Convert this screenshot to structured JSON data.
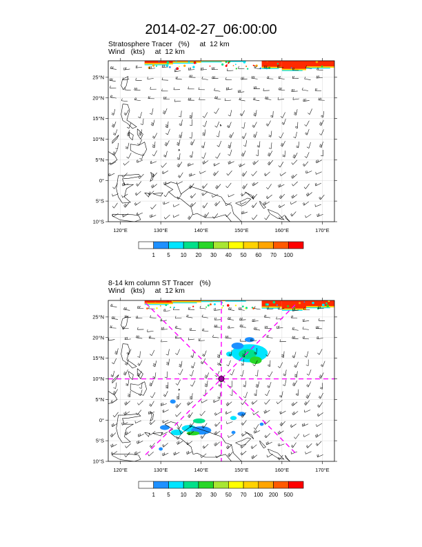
{
  "title": "2014-02-27_06:00:00",
  "panels": [
    {
      "id": "top",
      "label_line1": "Stratosphere Tracer   (%)     at  12 km",
      "label_line2": "Wind   (kts)     at  12 km",
      "colorbar": {
        "labels": [
          "1",
          "5",
          "10",
          "20",
          "30",
          "40",
          "50",
          "60",
          "70",
          "100"
        ],
        "colors": [
          "#ffffff",
          "#1e90ff",
          "#00e5ff",
          "#00e08a",
          "#28d628",
          "#a8e632",
          "#ffff00",
          "#ffd200",
          "#ffa500",
          "#ff5a00",
          "#ff0000"
        ]
      }
    },
    {
      "id": "bottom",
      "label_line1": "8-14 km column ST Tracer   (%)",
      "label_line2": "Wind   (kts)     at  12 km",
      "colorbar": {
        "labels": [
          "1",
          "5",
          "10",
          "20",
          "30",
          "50",
          "70",
          "100",
          "200",
          "500"
        ],
        "colors": [
          "#ffffff",
          "#1e90ff",
          "#00e5ff",
          "#00e08a",
          "#28d628",
          "#a8e632",
          "#ffff00",
          "#ffd200",
          "#ffa500",
          "#ff5a00",
          "#ff0000"
        ]
      },
      "marker": {
        "lon": 145,
        "lat": 10
      }
    }
  ],
  "map": {
    "lon_range": [
      117,
      173
    ],
    "lat_range": [
      -10,
      29
    ],
    "lon_ticks": [
      120,
      130,
      140,
      150,
      160,
      170
    ],
    "lon_tick_labels": [
      "120°E",
      "130°E",
      "140°E",
      "150°E",
      "160°E",
      "170°E"
    ],
    "lat_ticks": [
      25,
      20,
      15,
      10,
      5,
      0,
      -5,
      -10
    ],
    "lat_tick_labels": [
      "25°N",
      "20°N",
      "15°N",
      "10°N",
      "5°N",
      "0°",
      "5°S",
      "10°S"
    ],
    "grid_color": "#d9d9d9",
    "cross_color": "#ff00ff"
  }
}
